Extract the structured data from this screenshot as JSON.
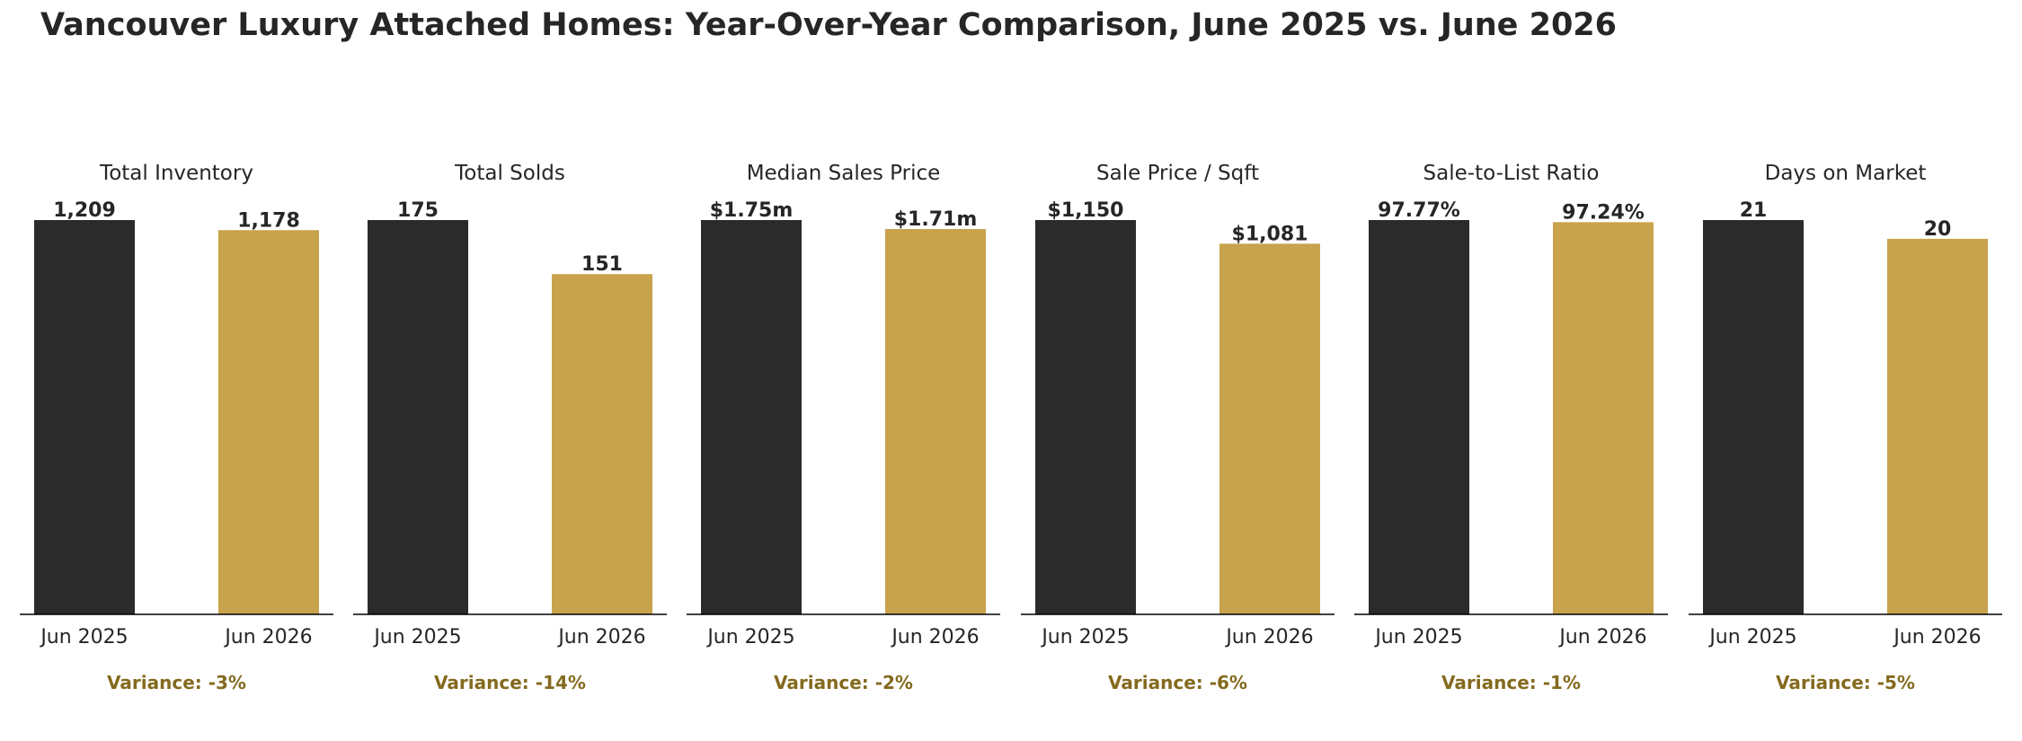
{
  "title": "Vancouver Luxury Attached Homes: Year-Over-Year Comparison, June 2025 vs. June 2026",
  "colors": {
    "jun_2025": "#2b2b2b",
    "jun_2026": "#c8a24c",
    "variance": "#846a1e",
    "text": "#262626"
  },
  "chart_data": [
    {
      "type": "bar",
      "title": "Total Inventory",
      "categories": [
        "Jun 2025",
        "Jun 2026"
      ],
      "values": [
        1209,
        1178
      ],
      "labels": [
        "1,209",
        "1,178"
      ],
      "variance": "Variance: -3%"
    },
    {
      "type": "bar",
      "title": "Total Solds",
      "categories": [
        "Jun 2025",
        "Jun 2026"
      ],
      "values": [
        175,
        151
      ],
      "labels": [
        "175",
        "151"
      ],
      "variance": "Variance: -14%"
    },
    {
      "type": "bar",
      "title": "Median Sales Price",
      "categories": [
        "Jun 2025",
        "Jun 2026"
      ],
      "values": [
        1750000,
        1710000
      ],
      "labels": [
        "$1.75m",
        "$1.71m"
      ],
      "variance": "Variance: -2%"
    },
    {
      "type": "bar",
      "title": "Sale Price / Sqft",
      "categories": [
        "Jun 2025",
        "Jun 2026"
      ],
      "values": [
        1150,
        1081
      ],
      "labels": [
        "$1,150",
        "$1,081"
      ],
      "variance": "Variance: -6%"
    },
    {
      "type": "bar",
      "title": "Sale-to-List Ratio",
      "categories": [
        "Jun 2025",
        "Jun 2026"
      ],
      "values": [
        97.77,
        97.24
      ],
      "labels": [
        "97.77%",
        "97.24%"
      ],
      "variance": "Variance: -1%"
    },
    {
      "type": "bar",
      "title": "Days on Market",
      "categories": [
        "Jun 2025",
        "Jun 2026"
      ],
      "values": [
        21,
        20
      ],
      "labels": [
        "21",
        "20"
      ],
      "variance": "Variance: -5%"
    }
  ]
}
